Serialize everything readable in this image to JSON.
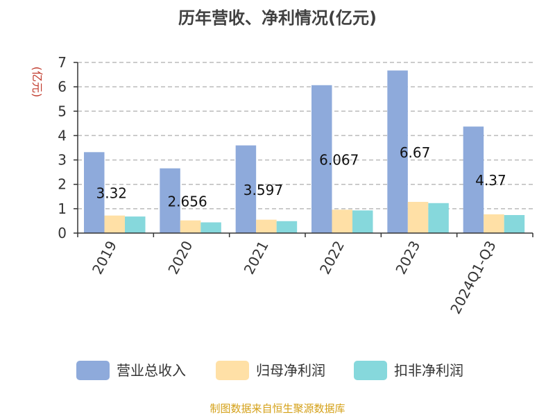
{
  "chart_data": {
    "type": "bar",
    "title": "历年营收、净利情况(亿元)",
    "ylabel": "(亿元)",
    "xlabel": "",
    "categories": [
      "2019",
      "2020",
      "2021",
      "2022",
      "2023",
      "2024Q1-Q3"
    ],
    "series": [
      {
        "name": "营业总收入",
        "color": "#8eaadb",
        "values": [
          3.32,
          2.656,
          3.597,
          6.067,
          6.67,
          4.37
        ]
      },
      {
        "name": "归母净利润",
        "color": "#ffe0a6",
        "values": [
          0.72,
          0.52,
          0.55,
          0.96,
          1.28,
          0.77
        ]
      },
      {
        "name": "扣非净利润",
        "color": "#86d8dc",
        "values": [
          0.68,
          0.44,
          0.49,
          0.93,
          1.23,
          0.74
        ]
      }
    ],
    "data_labels": [
      "3.32",
      "2.656",
      "3.597",
      "6.067",
      "6.67",
      "4.37"
    ],
    "ylim": [
      0,
      7
    ],
    "yticks": [
      0,
      1,
      2,
      3,
      4,
      5,
      6,
      7
    ],
    "grid": true,
    "legend": "bottom"
  },
  "footer": {
    "source": "制图数据来自恒生聚源数据库"
  },
  "colors": {
    "title": "#404040",
    "ylabel": "#c0392b",
    "axis": "#333333",
    "grid": "#bbbbbb",
    "footer": "#d4a017"
  }
}
